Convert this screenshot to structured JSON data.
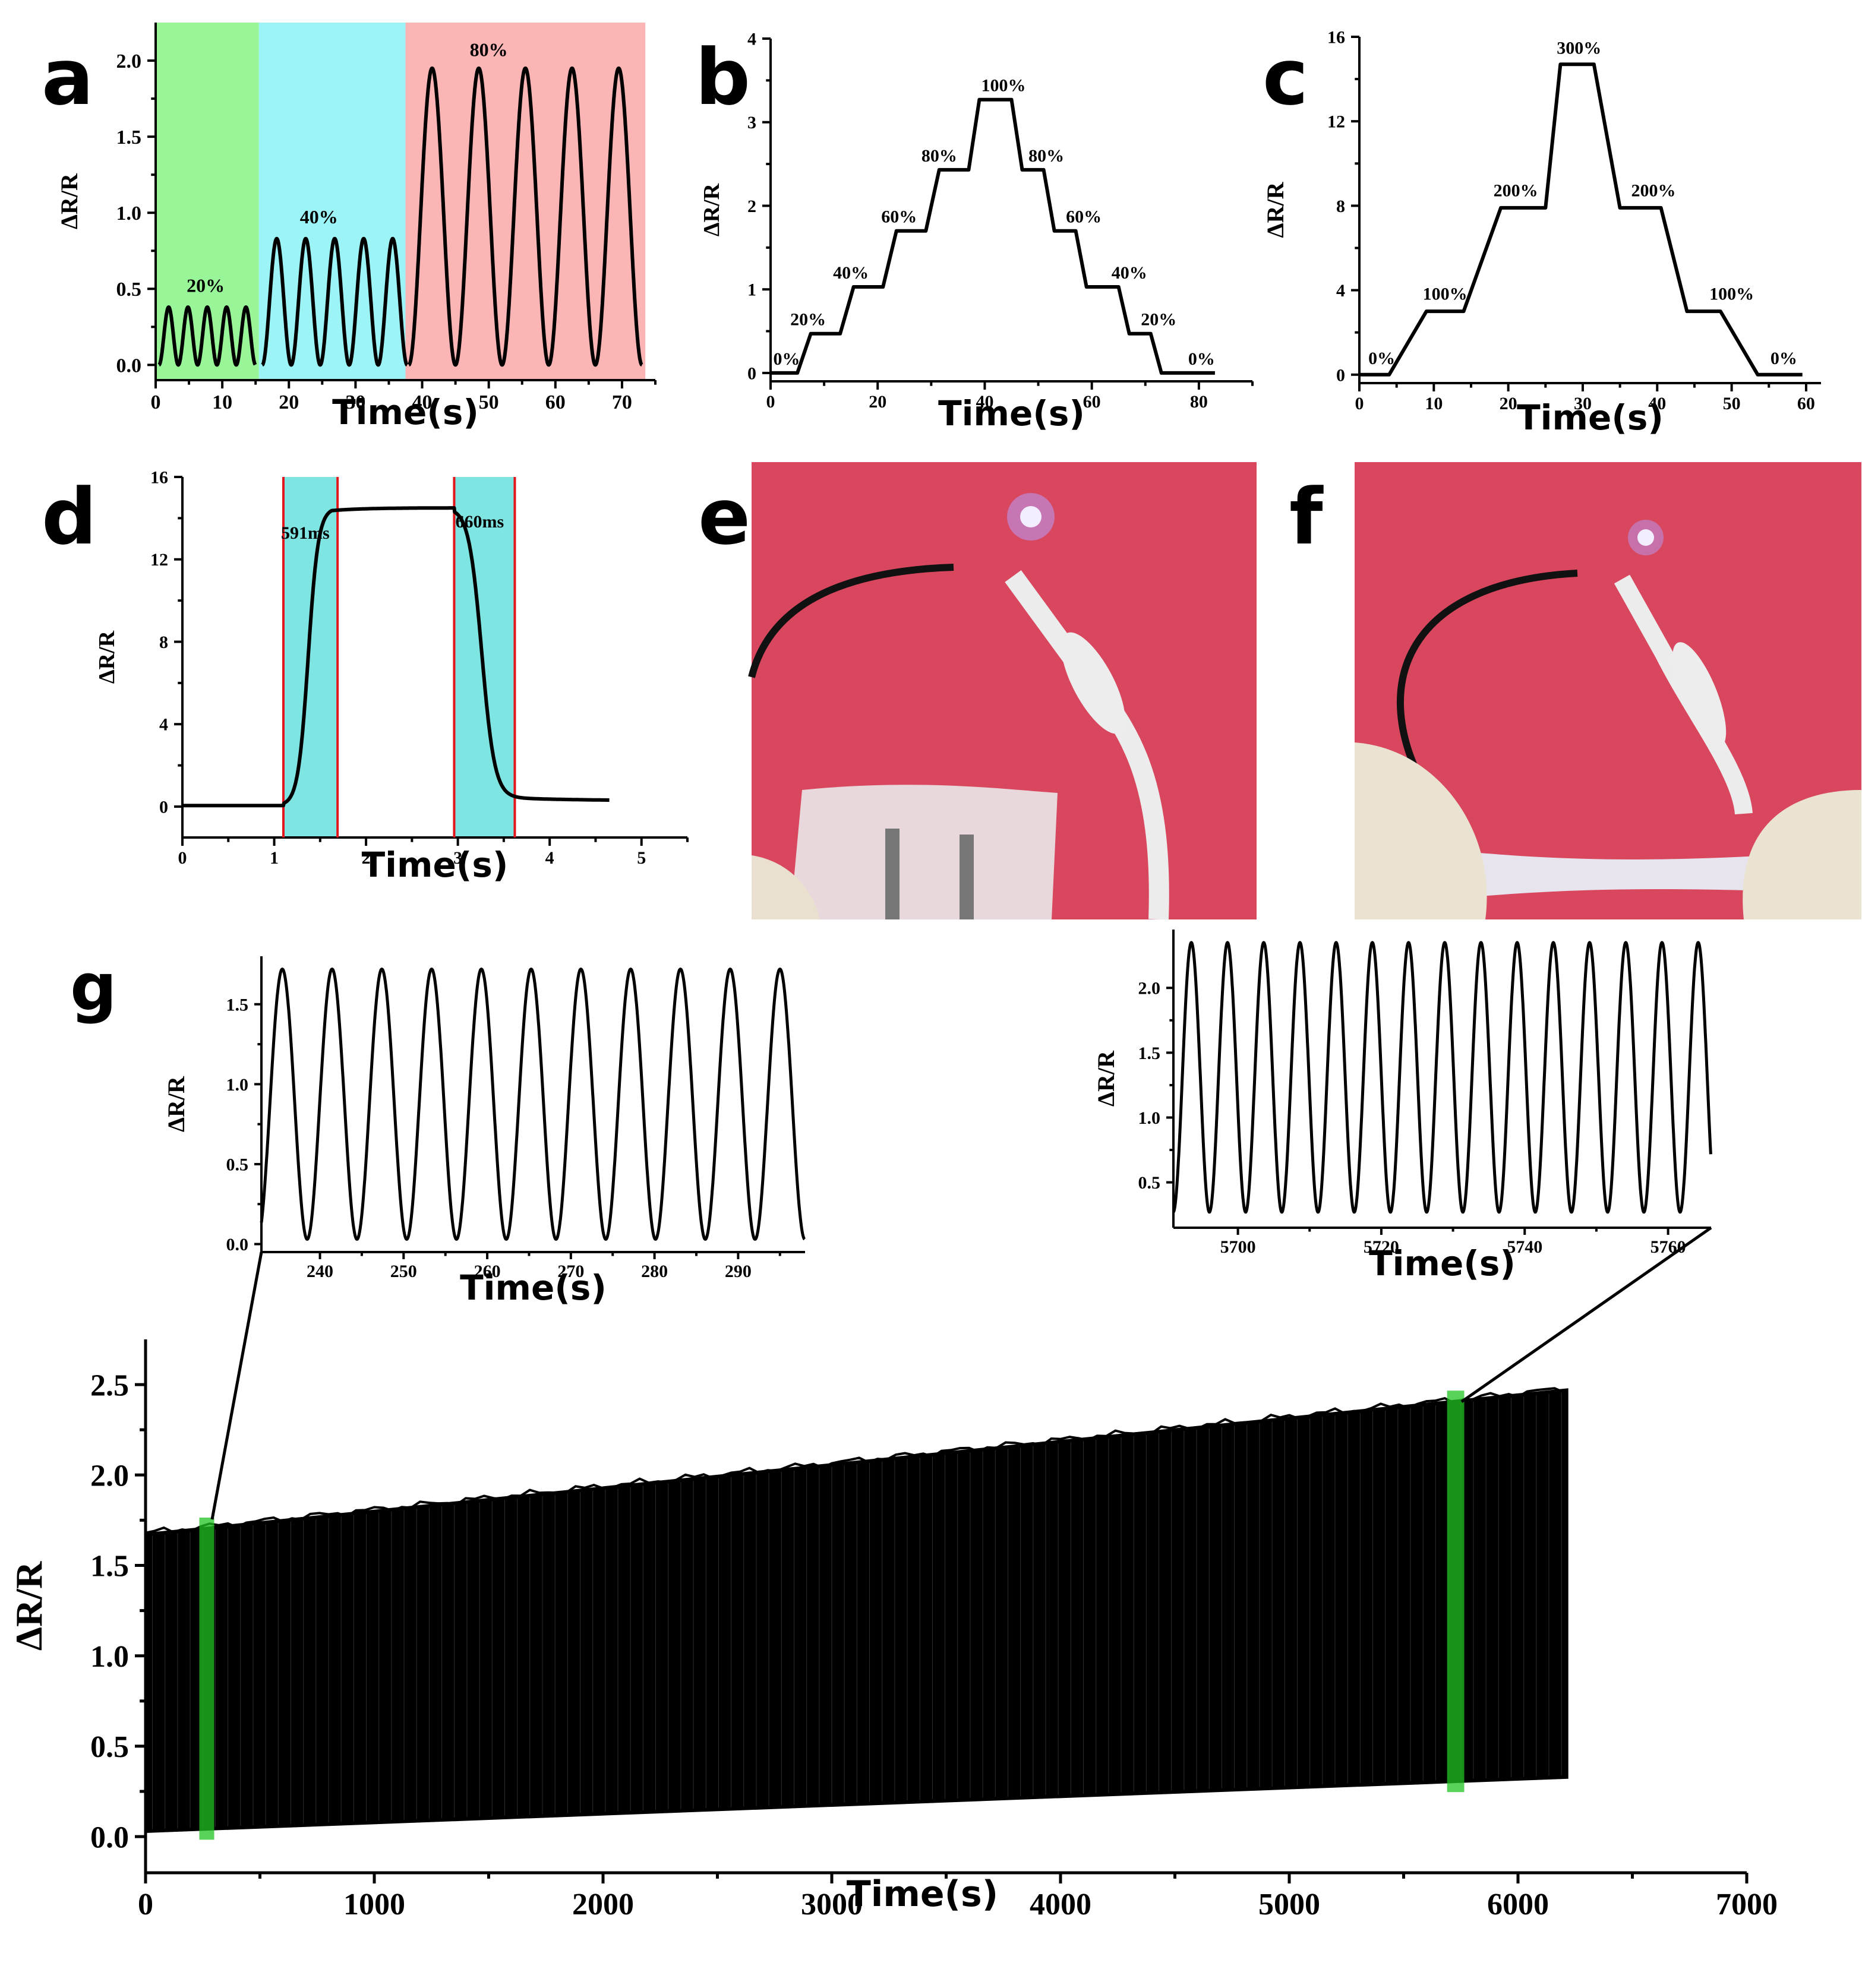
{
  "panel_labels": {
    "a": "a",
    "b": "b",
    "c": "c",
    "d": "d",
    "e": "e",
    "f": "f",
    "g": "g"
  },
  "colors": {
    "green_region": "#98F598",
    "cyan_region": "#9DF4F6",
    "pink_region": "#FBB5B5",
    "teal_region": "#7EE5E2",
    "red_line": "#E3161B",
    "highlight_green": "#22C322",
    "photo_background": "#D9475F"
  },
  "photos": {
    "e": {
      "description_icon": "led-circuit-photo-relaxed"
    },
    "f": {
      "description_icon": "led-circuit-photo-stretched"
    }
  },
  "chart_data": [
    {
      "id": "a",
      "type": "line",
      "xlabel": "Time(s)",
      "ylabel": "ΔR/R",
      "xlim": [
        0,
        75
      ],
      "ylim": [
        -0.1,
        2.25
      ],
      "xticks": [
        0,
        10,
        20,
        30,
        40,
        50,
        60,
        70
      ],
      "yticks": [
        0.0,
        0.5,
        1.0,
        1.5,
        2.0
      ],
      "ytick_labels": [
        "0.0",
        "0.5",
        "1.0",
        "1.5",
        "2.0"
      ],
      "regions": [
        {
          "x0": 0,
          "x1": 15.5,
          "color": "#98F598"
        },
        {
          "x0": 15.5,
          "x1": 37.5,
          "color": "#9DF4F6"
        },
        {
          "x0": 37.5,
          "x1": 73.5,
          "color": "#FBB5B5"
        }
      ],
      "series": [
        {
          "name": "20%",
          "start": 0.5,
          "period": 2.9,
          "cycles": 5,
          "amplitude": 0.38
        },
        {
          "name": "40%",
          "start": 16.0,
          "period": 4.35,
          "cycles": 5,
          "amplitude": 0.83
        },
        {
          "name": "80%",
          "start": 38.0,
          "period": 7.0,
          "cycles": 5,
          "amplitude": 1.95
        }
      ],
      "annotations": [
        {
          "text": "20%",
          "x": 7.5,
          "y": 0.48
        },
        {
          "text": "40%",
          "x": 24.5,
          "y": 0.93
        },
        {
          "text": "80%",
          "x": 50,
          "y": 2.03
        }
      ]
    },
    {
      "id": "b",
      "type": "line",
      "xlabel": "Time(s)",
      "ylabel": "ΔR/R",
      "xlim": [
        0,
        90
      ],
      "ylim": [
        -0.1,
        4
      ],
      "xticks": [
        0,
        20,
        40,
        60,
        80
      ],
      "yticks": [
        0,
        1,
        2,
        3,
        4
      ],
      "ytick_labels": [
        "0",
        "1",
        "2",
        "3",
        "4"
      ],
      "x": [
        0,
        5,
        7.5,
        13,
        15.5,
        21,
        23.5,
        29,
        31.5,
        37,
        39,
        45,
        47,
        51,
        53,
        57,
        59,
        65,
        67,
        71,
        73,
        78,
        80,
        83
      ],
      "y": [
        0,
        0,
        0.47,
        0.47,
        1.03,
        1.03,
        1.7,
        1.7,
        2.43,
        2.43,
        3.27,
        3.27,
        2.43,
        2.43,
        1.7,
        1.7,
        1.03,
        1.03,
        0.47,
        0.47,
        0,
        0,
        0,
        0
      ],
      "annotations": [
        {
          "text": "0%",
          "x": 3,
          "y": 0.1
        },
        {
          "text": "20%",
          "x": 7,
          "y": 0.57
        },
        {
          "text": "40%",
          "x": 15,
          "y": 1.13
        },
        {
          "text": "60%",
          "x": 24,
          "y": 1.8
        },
        {
          "text": "80%",
          "x": 31.5,
          "y": 2.53
        },
        {
          "text": "100%",
          "x": 43.5,
          "y": 3.37
        },
        {
          "text": "80%",
          "x": 51.5,
          "y": 2.53
        },
        {
          "text": "60%",
          "x": 58.5,
          "y": 1.8
        },
        {
          "text": "40%",
          "x": 67,
          "y": 1.13
        },
        {
          "text": "20%",
          "x": 72.5,
          "y": 0.57
        },
        {
          "text": "0%",
          "x": 80.5,
          "y": 0.1
        }
      ]
    },
    {
      "id": "c",
      "type": "line",
      "xlabel": "Time(s)",
      "ylabel": "ΔR/R",
      "xlim": [
        0,
        62
      ],
      "ylim": [
        -0.4,
        16
      ],
      "xticks": [
        0,
        10,
        20,
        30,
        40,
        50,
        60
      ],
      "yticks": [
        0,
        4,
        8,
        12,
        16
      ],
      "ytick_labels": [
        "0",
        "4",
        "8",
        "12",
        "16"
      ],
      "x": [
        0,
        4,
        9,
        14,
        19,
        25,
        27,
        31.5,
        35,
        40.5,
        44,
        48.5,
        53.5,
        59.5
      ],
      "y": [
        0,
        0,
        3,
        3,
        7.9,
        7.9,
        14.7,
        14.7,
        7.9,
        7.9,
        3,
        3,
        0,
        0
      ],
      "annotations": [
        {
          "text": "0%",
          "x": 3,
          "y": 0.5
        },
        {
          "text": "100%",
          "x": 11.5,
          "y": 3.55
        },
        {
          "text": "200%",
          "x": 21,
          "y": 8.45
        },
        {
          "text": "300%",
          "x": 29.5,
          "y": 15.2
        },
        {
          "text": "200%",
          "x": 39.5,
          "y": 8.45
        },
        {
          "text": "100%",
          "x": 50,
          "y": 3.55
        },
        {
          "text": "0%",
          "x": 57,
          "y": 0.5
        }
      ]
    },
    {
      "id": "d",
      "type": "line",
      "xlabel": "Time(s)",
      "ylabel": "ΔR/R",
      "xlim": [
        0,
        5.5
      ],
      "ylim": [
        -1.5,
        16
      ],
      "xticks": [
        0,
        1,
        2,
        3,
        4,
        5
      ],
      "yticks": [
        0,
        4,
        8,
        12,
        16
      ],
      "ytick_labels": [
        "0",
        "4",
        "8",
        "12",
        "16"
      ],
      "rise": {
        "t0": 1.1,
        "t1": 1.69,
        "label": "591ms"
      },
      "fall": {
        "t0": 2.96,
        "t1": 3.62,
        "label": "660ms"
      },
      "baseline": 0.05,
      "plateau": 14.5,
      "end_value": 0.28,
      "end_time": 4.65
    },
    {
      "id": "g",
      "type": "line",
      "xlabel": "Time(s)",
      "ylabel": "ΔR/R",
      "xlim": [
        0,
        7000
      ],
      "ylim": [
        -0.2,
        2.75
      ],
      "xticks": [
        0,
        1000,
        2000,
        3000,
        4000,
        5000,
        6000,
        7000
      ],
      "yticks": [
        0.0,
        0.5,
        1.0,
        1.5,
        2.0,
        2.5
      ],
      "ytick_labels": [
        "0.0",
        "0.5",
        "1.0",
        "1.5",
        "2.0",
        "2.5"
      ],
      "envelope": {
        "x": [
          0,
          6220
        ],
        "upper": [
          1.68,
          2.48
        ],
        "lower": [
          0.02,
          0.32
        ]
      },
      "highlights": [
        {
          "x0": 235,
          "x1": 300
        },
        {
          "x0": 5690,
          "x1": 5765
        }
      ]
    },
    {
      "id": "g_inset_left",
      "type": "line",
      "xlabel": "Time(s)",
      "ylabel": "ΔR/R",
      "xlim": [
        233,
        298
      ],
      "ylim": [
        -0.05,
        1.8
      ],
      "xticks": [
        240,
        250,
        260,
        270,
        280,
        290
      ],
      "yticks": [
        0.0,
        0.5,
        1.0,
        1.5
      ],
      "ytick_labels": [
        "0.0",
        "0.5",
        "1.0",
        "1.5"
      ],
      "wave": {
        "period": 5.95,
        "phase_peak": 235.5,
        "min": 0.03,
        "max": 1.72
      }
    },
    {
      "id": "g_inset_right",
      "type": "line",
      "xlabel": "Time(s)",
      "ylabel": "ΔR/R",
      "xlim": [
        5691,
        5766
      ],
      "ylim": [
        0.15,
        2.45
      ],
      "xticks": [
        5700,
        5720,
        5740,
        5760
      ],
      "yticks": [
        0.5,
        1.0,
        1.5,
        2.0
      ],
      "ytick_labels": [
        "0.5",
        "1.0",
        "1.5",
        "2.0"
      ],
      "wave": {
        "period": 5.05,
        "phase_peak": 5693.5,
        "min": 0.27,
        "max": 2.35
      }
    }
  ]
}
